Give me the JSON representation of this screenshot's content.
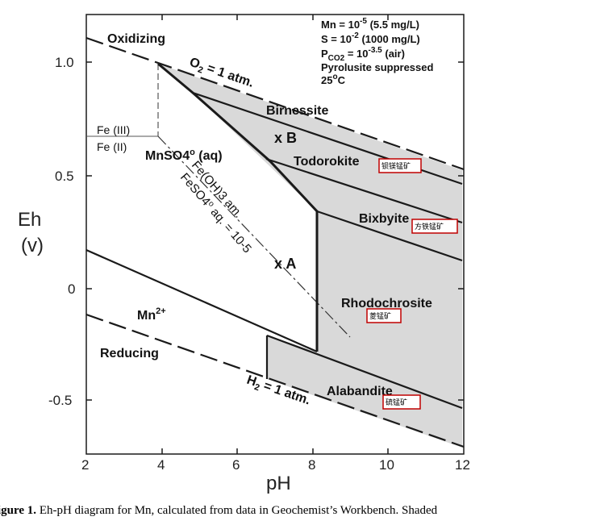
{
  "axes": {
    "x_label": "pH",
    "y_label_top": "Eh",
    "y_label_bottom": "(v)",
    "x_ticks": [
      "2",
      "4",
      "6",
      "8",
      "10",
      "12"
    ],
    "y_ticks": [
      "1.0",
      "0.5",
      "0",
      "-0.5"
    ]
  },
  "conditions": {
    "mn": "Mn = 10",
    "mn_exp": "-5",
    "mn_note": " (5.5 mg/L)",
    "s": "S = 10",
    "s_exp": "-2",
    "s_note": " (1000 mg/L)",
    "pco2": "P",
    "pco2_sub": "CO2",
    "pco2_eq": " = 10",
    "pco2_exp": "-3.5",
    "pco2_note": " (air)",
    "suppressed": "Pyrolusite suppressed",
    "temp": "25",
    "temp_sup": "o",
    "temp_unit": "C"
  },
  "labels": {
    "oxidizing": "Oxidizing",
    "reducing": "Reducing",
    "o2_line": "O",
    "o2_sub": "2",
    "o2_rest": " = 1 atm.",
    "h2_line": "H",
    "h2_sub": "2",
    "h2_rest": " = 1 atm.",
    "fe3": "Fe (III)",
    "fe2": "Fe (II)",
    "mnso4": "MnSO4",
    "mnso4_sup": "o",
    "mnso4_rest": " (aq)",
    "feoh3": "Fe(OH)3 am.",
    "feso4": "FeSO4",
    "feso4_sup": "o",
    "feso4_rest": " aq. = 10-5",
    "mn2": "Mn",
    "mn2_sup": "2+",
    "birnessite": "Birnessite",
    "todorokite": "Todorokite",
    "bixbyite": "Bixbyite",
    "rhodochrosite": "Rhodochrosite",
    "alabandite": "Alabandite",
    "point_b": "x B",
    "point_a": "x A"
  },
  "annotations": {
    "todorokite_cn": "钡镁锰矿",
    "bixbyite_cn": "方铁锰矿",
    "rhodochrosite_cn": "菱锰矿",
    "alabandite_cn": "硫锰矿"
  },
  "caption": {
    "bold": "igure 1.",
    "text": "  Eh-pH diagram for Mn, calculated from data in Geochemist’s Workbench.   Shaded"
  },
  "colors": {
    "shade": "#d9d9d9",
    "annotation_box": "#c00000",
    "line": "#1a1a1a"
  }
}
